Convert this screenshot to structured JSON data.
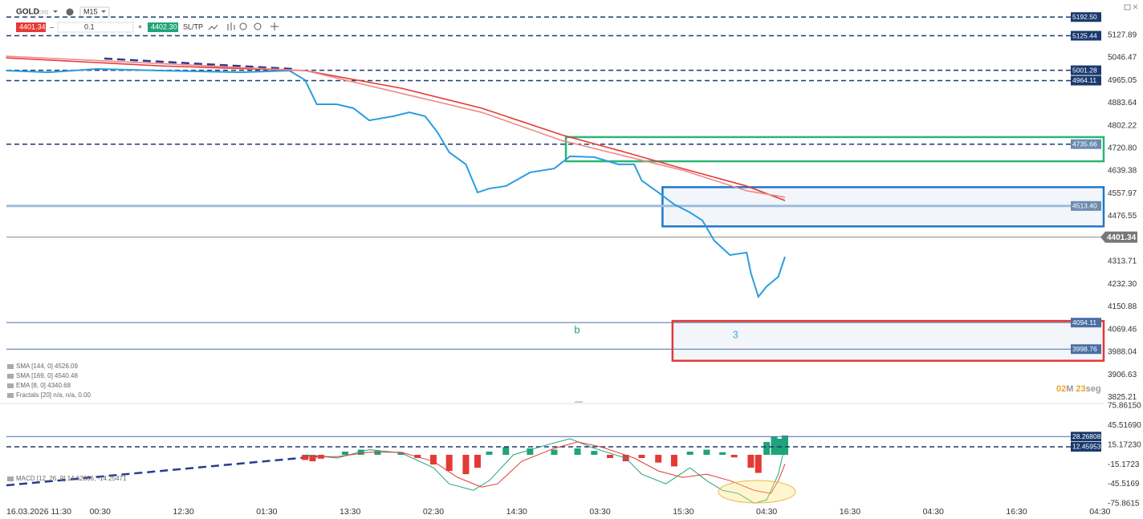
{
  "toolbar": {
    "symbol": "GOLD",
    "kind": "CFD",
    "timeframe": "M15",
    "sell": "4401.34",
    "volume": "0.1",
    "buy": "4402.30",
    "sltp": "SL/TP"
  },
  "timer": [
    "02",
    "M",
    "23",
    "seg"
  ],
  "chart_data": [
    {
      "type": "line",
      "xlim": [
        -0.125,
        13.045
      ],
      "ylim": [
        3812,
        5225
      ],
      "xticks": [
        {
          "value": 0,
          "label": "16.03.2026 11:30"
        },
        {
          "value": 1,
          "label": "00:30"
        },
        {
          "value": 2,
          "label": "12:30"
        },
        {
          "value": 3,
          "label": "01:30"
        },
        {
          "value": 4,
          "label": "13:30"
        },
        {
          "value": 5,
          "label": "02:30"
        },
        {
          "value": 6,
          "label": "14:30"
        },
        {
          "value": 7,
          "label": "03:30"
        },
        {
          "value": 8,
          "label": "15:30"
        },
        {
          "value": 9,
          "label": "04:30"
        },
        {
          "value": 10,
          "label": "16:30"
        },
        {
          "value": 11,
          "label": "04:30"
        },
        {
          "value": 12,
          "label": "16:30"
        },
        {
          "value": 13,
          "label": "04:30"
        }
      ],
      "yticks": [
        5127.89,
        5046.47,
        4965.05,
        4883.64,
        4802.22,
        {
          "value": 4720.8,
          "label": "4720.80"
        },
        4639.38,
        4557.97,
        4476.55,
        4313.71,
        {
          "value": 4232.3,
          "label": "4232.30"
        },
        4150.88,
        4069.46,
        3988.04,
        3906.63,
        3825.21
      ],
      "series": [
        {
          "color": "#2a9de0",
          "width": 2,
          "x": [
            -0.13,
            0.38,
            0.95,
            1.72,
            2.69,
            3.27,
            3.46,
            3.6,
            3.84,
            4.04,
            4.23,
            4.52,
            4.71,
            4.9,
            5.05,
            5.19,
            5.39,
            5.53,
            5.67,
            5.87,
            6.16,
            6.45,
            6.64,
            6.93,
            7.22,
            7.41,
            7.5,
            7.7,
            7.89,
            8.08,
            8.23,
            8.37,
            8.56,
            8.76,
            8.81,
            8.9,
            9.0,
            9.14,
            9.22
          ],
          "values": [
            5000,
            4994,
            5006,
            5000,
            4994,
            5000,
            4966,
            4879,
            4879,
            4865,
            4821,
            4836,
            4850,
            4836,
            4778,
            4706,
            4663,
            4562,
            4576,
            4585,
            4634,
            4648,
            4692,
            4689,
            4663,
            4663,
            4605,
            4562,
            4519,
            4490,
            4461,
            4389,
            4337,
            4346,
            4273,
            4187,
            4224,
            4259,
            4331
          ]
        },
        {
          "color": "#e53935",
          "width": 1.6,
          "x": [
            -0.13,
            1.72,
            3.46,
            4.61,
            5.58,
            6.54,
            7.31,
            7.99,
            8.76,
            9.22
          ],
          "values": [
            5046,
            5017,
            5000,
            4937,
            4865,
            4769,
            4706,
            4648,
            4585,
            4533
          ]
        },
        {
          "color": "#ef8a8a",
          "width": 1.6,
          "x": [
            -0.13,
            3.46,
            5.58,
            6.54,
            7.31,
            7.99,
            8.76,
            9.22
          ],
          "values": [
            5052,
            5000,
            4850,
            4749,
            4692,
            4642,
            4568,
            4545
          ]
        }
      ],
      "levels": [
        {
          "value": 5192.5,
          "label": "5192.50",
          "style": "dashed",
          "color": "#1a3a6e",
          "box": "#1a3a6e"
        },
        {
          "value": 5125.44,
          "label": "5125.44",
          "style": "dashed",
          "color": "#1a3a6e",
          "box": "#1a3a6e"
        },
        {
          "value": 5001.28,
          "label": "5001.28",
          "style": "dashed",
          "color": "#1a3a6e",
          "box": "#1a3a6e"
        },
        {
          "value": 4964.11,
          "label": "4964.11",
          "style": "dashed",
          "color": "#1a3a6e",
          "box": "#1a3a6e"
        },
        {
          "value": 4735.66,
          "label": "4735.66",
          "style": "dashed",
          "color": "#1a3a6e",
          "box": "#6a8caf"
        },
        {
          "value": 4513.4,
          "label": "4513.40",
          "style": "thick",
          "color": "#9dbcdc",
          "box": "#6a8caf"
        },
        {
          "value": 4094.11,
          "label": "4094.11",
          "style": "solid",
          "color": "#4a6fa5",
          "box": "#4a6fa5"
        },
        {
          "value": 3998.76,
          "label": "3998.76",
          "style": "solid",
          "color": "#4a6fa5",
          "box": "#4a6fa5"
        }
      ],
      "current": 4401.34,
      "zones": [
        {
          "x0": 6.59,
          "ylim": [
            4674,
            4761
          ],
          "color": "#2bb673",
          "fill": "none"
        },
        {
          "x0": 7.75,
          "ylim": [
            4440,
            4581
          ],
          "color": "#1f78c8",
          "fill": "#f2f6fa"
        },
        {
          "x0": 7.87,
          "ylim": [
            3957,
            4100
          ],
          "color": "#e53935",
          "fill": "#f2f6fa"
        }
      ],
      "annotations": [
        {
          "text": "b",
          "x": 6.69,
          "y": 4066,
          "color": "#1fa37a"
        },
        {
          "text": "3",
          "x": 8.59,
          "y": 4048,
          "color": "#4aa3df"
        }
      ],
      "legend": [
        "SMA [144, 0] 4526.09",
        "SMA [169, 0] 4540.48",
        "EMA [8, 0] 4340.68",
        "Fractals [20] n/a, n/a, 0.00"
      ]
    },
    {
      "type": "macd",
      "xlim": [
        -0.125,
        13.045
      ],
      "ylim": [
        -75.8615,
        75.8615
      ],
      "yticks": [
        {
          "value": 75.8615,
          "label": "75.86150"
        },
        {
          "value": 45.5169,
          "label": "45.51690"
        },
        {
          "value": 15.1723,
          "label": "15.17230"
        },
        -15.1723,
        -45.5169,
        -75.8615
      ],
      "histogram": {
        "up": "#1fa37a",
        "down": "#e53935",
        "x": [
          3.46,
          3.55,
          3.65,
          3.94,
          4.13,
          4.33,
          4.61,
          4.81,
          5.0,
          5.19,
          5.39,
          5.53,
          5.67,
          5.87,
          6.16,
          6.45,
          6.73,
          6.93,
          7.12,
          7.31,
          7.5,
          7.7,
          7.89,
          8.08,
          8.28,
          8.47,
          8.61,
          8.81,
          8.9,
          9.0,
          9.09,
          9.16,
          9.22
        ],
        "values": [
          -8,
          -10,
          -6,
          5,
          8,
          6,
          4,
          -5,
          -15,
          -25,
          -30,
          -20,
          5,
          12,
          10,
          8,
          10,
          6,
          -5,
          -10,
          -5,
          -12,
          -18,
          5,
          8,
          4,
          -4,
          -20,
          -28,
          20,
          28,
          25,
          30
        ]
      },
      "series": [
        {
          "color": "#1fa37a",
          "width": 1,
          "x": [
            3.46,
            3.84,
            4.23,
            4.61,
            5.0,
            5.19,
            5.48,
            5.67,
            5.96,
            6.35,
            6.64,
            6.93,
            7.31,
            7.5,
            7.79,
            8.08,
            8.28,
            8.47,
            8.66,
            8.85,
            9.0,
            9.14,
            9.22
          ],
          "values": [
            0,
            -5,
            8,
            3,
            -20,
            -45,
            -55,
            -40,
            0,
            15,
            25,
            10,
            -5,
            -30,
            -45,
            -20,
            -40,
            -55,
            -60,
            -75,
            -70,
            -30,
            14.6
          ]
        },
        {
          "color": "#e53935",
          "width": 1,
          "x": [
            3.46,
            3.84,
            4.23,
            4.61,
            5.0,
            5.29,
            5.58,
            5.77,
            6.06,
            6.45,
            6.73,
            7.02,
            7.41,
            7.7,
            7.99,
            8.28,
            8.56,
            8.85,
            9.05,
            9.14,
            9.22
          ],
          "values": [
            -2,
            -3,
            4,
            4,
            -10,
            -35,
            -50,
            -45,
            -10,
            10,
            20,
            12,
            -5,
            -25,
            -35,
            -30,
            -40,
            -55,
            -60,
            -40,
            -14.3
          ]
        }
      ],
      "levels": [
        {
          "value": 28.26808,
          "style": "solid",
          "color": "#4a6fa5",
          "box": "#1a3a6e"
        },
        {
          "value": 12.45953,
          "style": "dashed",
          "color": "#1a3a6e",
          "box": "#1a3a6e"
        }
      ],
      "legend": [
        "MACD [12, 26, 9] 14.62866, -14.25471"
      ]
    }
  ]
}
